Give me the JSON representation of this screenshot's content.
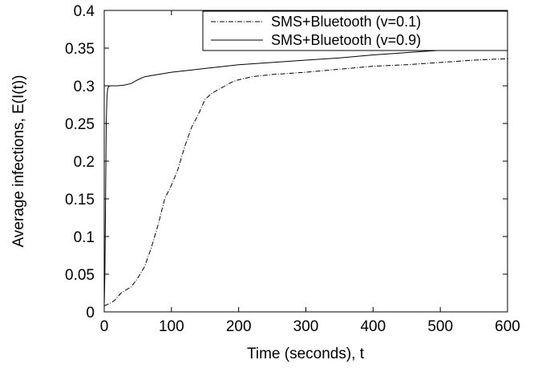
{
  "chart_data": {
    "type": "line",
    "title": "",
    "xlabel": "Time (seconds), t",
    "ylabel": "Average infections, E(I(t))",
    "xlim": [
      0,
      600
    ],
    "ylim": [
      0,
      0.4
    ],
    "x_ticks": [
      "0",
      "100",
      "200",
      "300",
      "400",
      "500",
      "600"
    ],
    "y_ticks": [
      "0",
      "0.05",
      "0.1",
      "0.15",
      "0.2",
      "0.25",
      "0.3",
      "0.35",
      "0.4"
    ],
    "grid": false,
    "legend_position": "top-right",
    "series": [
      {
        "name": "SMS+Bluetooth (v=0.1)",
        "style": "dash-dot",
        "color": "#000000",
        "x": [
          0,
          5,
          10,
          15,
          20,
          25,
          30,
          40,
          50,
          60,
          70,
          80,
          90,
          100,
          110,
          120,
          130,
          140,
          150,
          160,
          170,
          180,
          190,
          200,
          220,
          250,
          300,
          350,
          400,
          450,
          500,
          550,
          600
        ],
        "y": [
          0.008,
          0.01,
          0.012,
          0.015,
          0.02,
          0.025,
          0.028,
          0.033,
          0.045,
          0.06,
          0.085,
          0.115,
          0.15,
          0.168,
          0.19,
          0.22,
          0.245,
          0.262,
          0.282,
          0.29,
          0.295,
          0.3,
          0.305,
          0.308,
          0.312,
          0.315,
          0.318,
          0.322,
          0.326,
          0.328,
          0.331,
          0.334,
          0.336
        ]
      },
      {
        "name": "SMS+Bluetooth (v=0.9)",
        "style": "solid",
        "color": "#000000",
        "x": [
          0,
          1,
          2,
          3,
          4,
          5,
          6,
          8,
          10,
          20,
          30,
          40,
          50,
          60,
          80,
          100,
          150,
          200,
          250,
          300,
          350,
          400,
          450,
          500,
          550,
          600
        ],
        "y": [
          0.008,
          0.05,
          0.15,
          0.25,
          0.285,
          0.295,
          0.298,
          0.3,
          0.3,
          0.3,
          0.301,
          0.303,
          0.308,
          0.312,
          0.315,
          0.318,
          0.323,
          0.328,
          0.331,
          0.334,
          0.337,
          0.341,
          0.344,
          0.347,
          0.35,
          0.352
        ]
      }
    ]
  }
}
